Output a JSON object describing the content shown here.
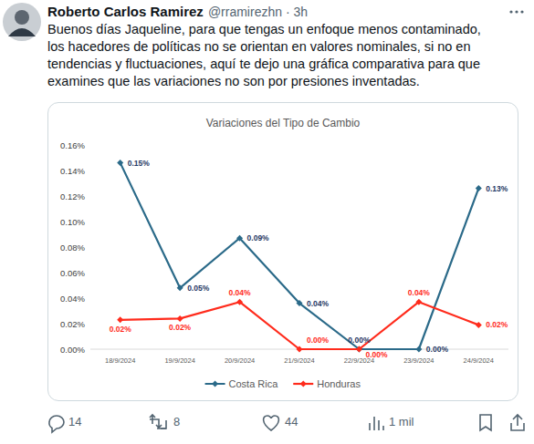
{
  "tweet": {
    "author": "Roberto Carlos Ramirez",
    "meta": "@rramirezhn · 3h",
    "text_lines": [
      "Buenos días Jaqueline, para que tengas un enfoque menos contaminado,",
      "los hacedores de políticas no se orientan en valores nominales, si no en",
      "tendencias y fluctuaciones, aquí te dejo una gráfica comparativa para que",
      "examines que las variaciones no son por presiones inventadas."
    ],
    "stats": {
      "replies": 14,
      "reposts": 8,
      "likes": 44,
      "views": "1 mil"
    }
  },
  "chart_data": {
    "type": "line",
    "title": "Variaciones del Tipo de Cambio",
    "categories": [
      "18/9/2024",
      "19/9/2024",
      "20/9/2024",
      "21/9/2024",
      "22/9/2024",
      "23/9/2024",
      "24/9/2024"
    ],
    "series": [
      {
        "name": "Costa Rica",
        "color": "#2b6a89",
        "marker": "diamond",
        "values": [
          0.146,
          0.048,
          0.087,
          0.036,
          0.0,
          0.0,
          0.126
        ],
        "value_labels": [
          "0.15%",
          "0.05%",
          "0.09%",
          "0.04%",
          "0.00%",
          "0.00%",
          "0.13%"
        ]
      },
      {
        "name": "Honduras",
        "color": "#ff2b1c",
        "marker": "diamond",
        "values": [
          0.023,
          0.024,
          0.037,
          0.0,
          0.0,
          0.037,
          0.019
        ],
        "value_labels": [
          "0.02%",
          "0.02%",
          "0.04%",
          "0.00%",
          "0.00%",
          "0.04%",
          "0.02%"
        ]
      }
    ],
    "ylim": [
      0,
      0.16
    ],
    "yticks": [
      {
        "value": 0,
        "label": "0.00%"
      },
      {
        "value": 0.02,
        "label": "0.02%"
      },
      {
        "value": 0.04,
        "label": "0.04%"
      },
      {
        "value": 0.06,
        "label": "0.06%"
      },
      {
        "value": 0.08,
        "label": "0.08%"
      },
      {
        "value": 0.1,
        "label": "0.10%"
      },
      {
        "value": 0.12,
        "label": "0.12%"
      },
      {
        "value": 0.14,
        "label": "0.14%"
      },
      {
        "value": 0.16,
        "label": "0.16%"
      }
    ],
    "grid": false,
    "data_labels": true,
    "legend": "bottom"
  }
}
